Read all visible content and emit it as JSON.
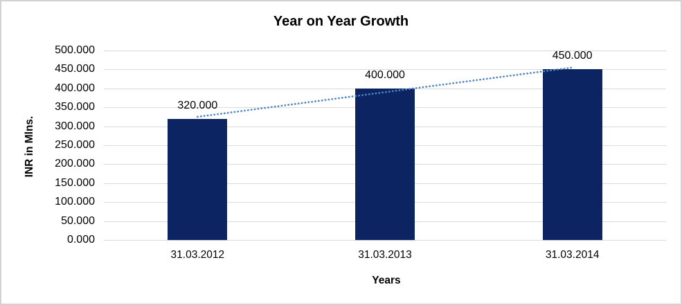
{
  "chart_data": {
    "type": "bar",
    "title": "Year on Year Growth",
    "xlabel": "Years",
    "ylabel": "INR in Mlns.",
    "categories": [
      "31.03.2012",
      "31.03.2013",
      "31.03.2014"
    ],
    "values": [
      320,
      400,
      450
    ],
    "data_labels": [
      "320.000",
      "400.000",
      "450.000"
    ],
    "ylim": [
      0,
      500
    ],
    "y_tick_step": 50,
    "y_tick_labels": [
      "0.000",
      "50.000",
      "100.000",
      "150.000",
      "200.000",
      "250.000",
      "300.000",
      "350.000",
      "400.000",
      "450.000",
      "500.000"
    ],
    "grid": true,
    "legend": "none",
    "trendline": {
      "kind": "linear-dotted",
      "start_value": 325,
      "end_value": 455
    },
    "colors": {
      "bar": "#0d2463",
      "trendline": "#4e86c8",
      "gridline": "#d9d9d9",
      "text": "#000000",
      "background": "#ffffff",
      "frame_border": "#d2d2d2"
    }
  }
}
